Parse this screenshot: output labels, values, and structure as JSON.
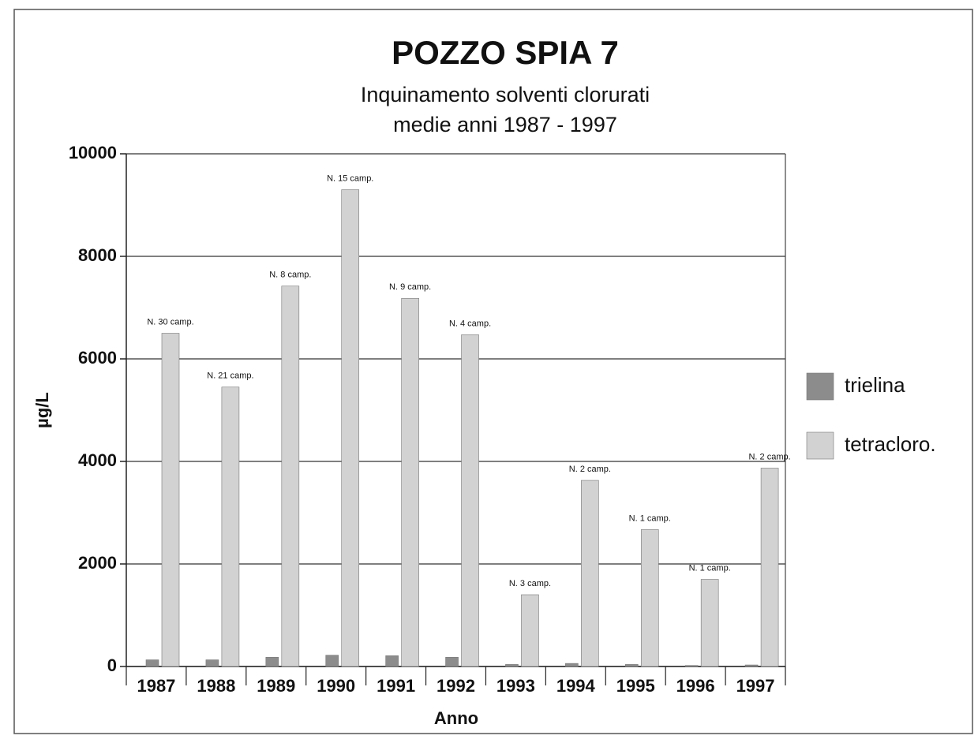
{
  "chart_data": {
    "type": "bar",
    "title": "POZZO SPIA 7",
    "subtitle": [
      "Inquinamento solventi clorurati",
      "medie anni 1987 - 1997"
    ],
    "x_label": "Anno",
    "y_label": "µg/L",
    "categories": [
      "1987",
      "1988",
      "1989",
      "1990",
      "1991",
      "1992",
      "1993",
      "1994",
      "1995",
      "1996",
      "1997"
    ],
    "series": [
      {
        "name": "trielina",
        "color": "#8c8c8c",
        "values": [
          130,
          130,
          180,
          220,
          210,
          180,
          40,
          60,
          40,
          20,
          30
        ]
      },
      {
        "name": "tetracloro.",
        "color": "#d2d2d2",
        "values": [
          6500,
          5450,
          7420,
          9300,
          7180,
          6470,
          1400,
          3630,
          2670,
          1700,
          3870
        ]
      }
    ],
    "annotations": [
      "N. 30 camp.",
      "N. 21 camp.",
      "N. 8 camp.",
      "N. 15 camp.",
      "N. 9 camp.",
      "N. 4 camp.",
      "N. 3 camp.",
      "N. 2 camp.",
      "N. 1 camp.",
      "N. 1 camp.",
      "N. 2 camp."
    ],
    "ylim": [
      0,
      10000
    ],
    "yticks": [
      0,
      2000,
      4000,
      6000,
      8000,
      10000
    ],
    "grid": true,
    "legend": "right"
  }
}
